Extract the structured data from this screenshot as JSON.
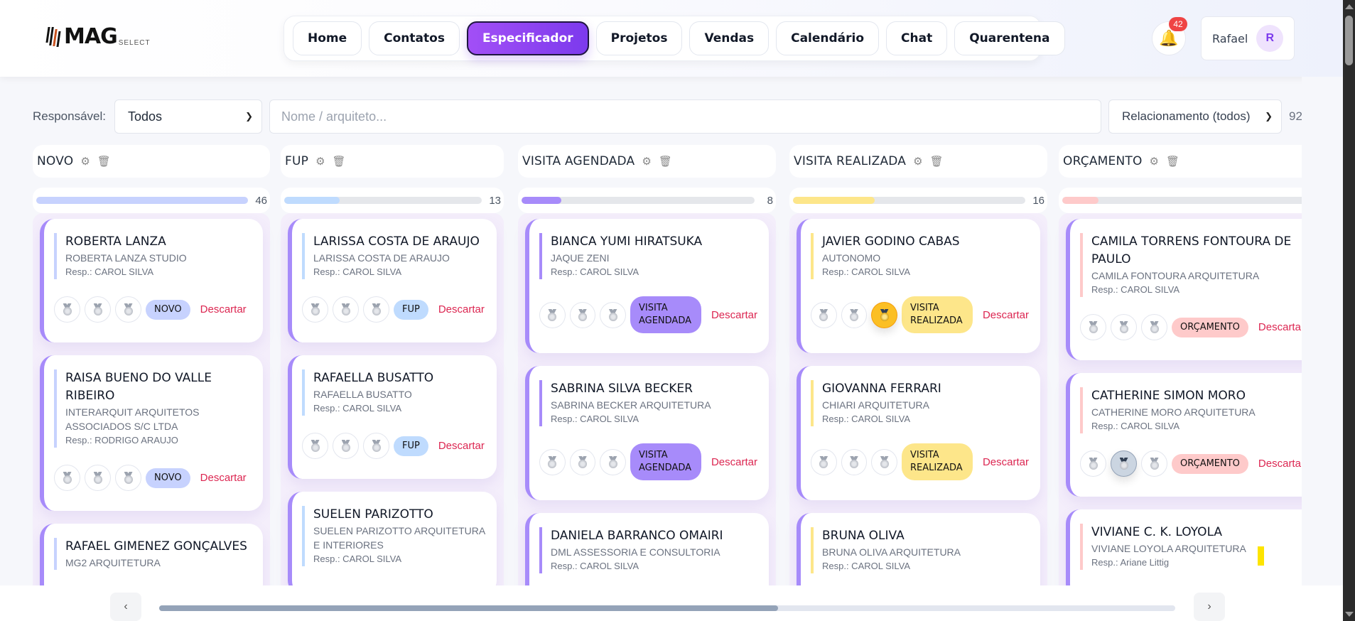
{
  "header": {
    "logo": {
      "brand": "MAG",
      "sub": "SELECT"
    },
    "nav": [
      {
        "label": "Home",
        "active": false
      },
      {
        "label": "Contatos",
        "active": false
      },
      {
        "label": "Especificador",
        "active": true
      },
      {
        "label": "Projetos",
        "active": false
      },
      {
        "label": "Vendas",
        "active": false
      },
      {
        "label": "Calendário",
        "active": false
      },
      {
        "label": "Chat",
        "active": false
      },
      {
        "label": "Quarentena",
        "active": false
      }
    ],
    "notifications": {
      "icon": "bell-icon",
      "count": "42"
    },
    "user": {
      "name": "Rafael",
      "initial": "R"
    }
  },
  "filters": {
    "responsavel_label": "Responsável:",
    "responsavel_value": "Todos",
    "search_placeholder": "Nome / arquiteto...",
    "search_value": "",
    "relacionamento_value": "Relacionamento (todos)",
    "total": "92"
  },
  "colors": {
    "accent": "#7c3aed",
    "discard": "#dc2651",
    "card_stripe": "#a78bfa"
  },
  "columns": [
    {
      "title": "NOVO",
      "count": "46",
      "progress_pct": 100,
      "bar_color": "#c7d2fe",
      "pill_color": "#c7d2fe",
      "info_color": "#c7d2fe",
      "cards": [
        {
          "name": "ROBERTA LANZA",
          "company": "ROBERTA LANZA STUDIO",
          "resp": "Resp.: CAROL SILVA",
          "status": "NOVO",
          "discard": "Descartar",
          "medals": [
            "off",
            "off",
            "off"
          ]
        },
        {
          "name": "RAISA BUENO DO VALLE RIBEIRO",
          "company": "INTERARQUIT ARQUITETOS ASSOCIADOS S/C LTDA",
          "resp": "Resp.: RODRIGO ARAUJO",
          "status": "NOVO",
          "discard": "Descartar",
          "medals": [
            "off",
            "off",
            "off"
          ]
        },
        {
          "name": "RAFAEL GIMENEZ GONÇALVES",
          "company": "MG2 ARQUITETURA",
          "resp": "",
          "status": "",
          "discard": "",
          "medals": []
        }
      ]
    },
    {
      "title": "FUP",
      "count": "13",
      "progress_pct": 28,
      "bar_color": "#bfdbfe",
      "pill_color": "#bfdbfe",
      "info_color": "#bfdbfe",
      "cards": [
        {
          "name": "LARISSA COSTA DE ARAUJO",
          "company": "LARISSA COSTA DE ARAUJO",
          "resp": "Resp.: CAROL SILVA",
          "status": "FUP",
          "discard": "Descartar",
          "medals": [
            "off",
            "off",
            "off"
          ]
        },
        {
          "name": "RAFAELLA BUSATTO",
          "company": "RAFAELLA BUSATTO",
          "resp": "Resp.: CAROL SILVA",
          "status": "FUP",
          "discard": "Descartar",
          "medals": [
            "off",
            "off",
            "off"
          ]
        },
        {
          "name": "SUELEN PARIZOTTO",
          "company": "SUELEN PARIZOTTO ARQUITETURA E INTERIORES",
          "resp": "Resp.: CAROL SILVA",
          "status": "",
          "discard": "",
          "medals": []
        }
      ]
    },
    {
      "title": "VISITA AGENDADA",
      "count": "8",
      "progress_pct": 17,
      "bar_color": "#a78bfa",
      "pill_color": "#a78bfa",
      "info_color": "#a78bfa",
      "cards": [
        {
          "name": "BIANCA YUMI HIRATSUKA",
          "company": "JAQUE ZENI",
          "resp": "Resp.: CAROL SILVA",
          "status": "VISITA AGENDADA",
          "discard": "Descartar",
          "medals": [
            "off",
            "off",
            "off"
          ]
        },
        {
          "name": "SABRINA SILVA BECKER",
          "company": "SABRINA BECKER ARQUITETURA",
          "resp": "Resp.: CAROL SILVA",
          "status": "VISITA AGENDADA",
          "discard": "Descartar",
          "medals": [
            "off",
            "off",
            "off"
          ]
        },
        {
          "name": "DANIELA BARRANCO OMAIRI",
          "company": "DML ASSESSORIA E CONSULTORIA",
          "resp": "Resp.: CAROL SILVA",
          "status": "",
          "discard": "",
          "medals": []
        }
      ]
    },
    {
      "title": "VISITA REALIZADA",
      "count": "16",
      "progress_pct": 35,
      "bar_color": "#fde68a",
      "pill_color": "#fde68a",
      "info_color": "#fde68a",
      "cards": [
        {
          "name": "JAVIER GODINO CABAS",
          "company": "AUTONOMO",
          "resp": "Resp.: CAROL SILVA",
          "status": "VISITA REALIZADA",
          "discard": "Descartar",
          "medals": [
            "off",
            "off",
            "gold"
          ]
        },
        {
          "name": "GIOVANNA FERRARI",
          "company": "CHIARI ARQUITETURA",
          "resp": "Resp.: CAROL SILVA",
          "status": "VISITA REALIZADA",
          "discard": "Descartar",
          "medals": [
            "off",
            "off",
            "off"
          ]
        },
        {
          "name": "BRUNA OLIVA",
          "company": "BRUNA OLIVA ARQUITETURA",
          "resp": "Resp.: CAROL SILVA",
          "status": "",
          "discard": "",
          "medals": []
        }
      ]
    },
    {
      "title": "ORÇAMENTO",
      "count": "",
      "progress_pct": 14,
      "bar_color": "#fecaca",
      "pill_color": "#fecaca",
      "info_color": "#fecaca",
      "cards": [
        {
          "name": "CAMILA TORRENS FONTOURA DE PAULO",
          "company": "CAMILA FONTOURA ARQUITETURA",
          "resp": "Resp.: CAROL SILVA",
          "status": "ORÇAMENTO",
          "discard": "Descartar",
          "medals": [
            "off",
            "off",
            "off"
          ]
        },
        {
          "name": "CATHERINE SIMON MORO",
          "company": "CATHERINE MORO ARQUITETURA",
          "resp": "Resp.: CAROL SILVA",
          "status": "ORÇAMENTO",
          "discard": "Descartar",
          "medals": [
            "off",
            "silver",
            "off"
          ]
        },
        {
          "name": "VIVIANE C. K. LOYOLA",
          "company": "VIVIANE LOYOLA ARQUITETURA",
          "resp": "Resp.: Ariane Littig",
          "status": "",
          "discard": "",
          "medals": []
        }
      ]
    }
  ],
  "scroller": {
    "prev": "‹",
    "next": "›"
  }
}
